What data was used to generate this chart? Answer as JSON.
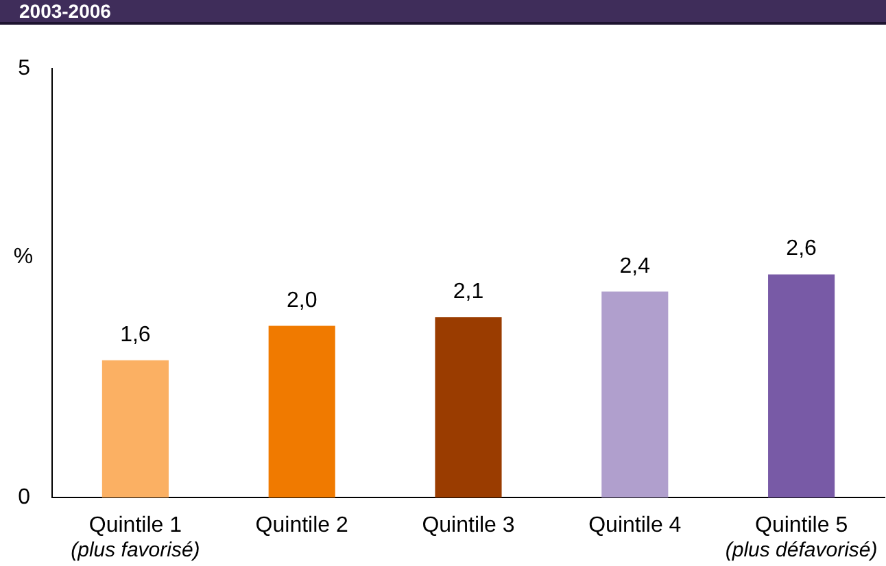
{
  "chart_data": {
    "type": "bar",
    "title": "2003-2006",
    "ylabel": "%",
    "categories": [
      "Quintile 1\n(plus favorisé)",
      "Quintile 2",
      "Quintile 3",
      "Quintile 4",
      "Quintile 5\n(plus défavorisé)"
    ],
    "values": [
      1.6,
      2.0,
      2.1,
      2.4,
      2.6
    ],
    "colors": [
      "#fbb063",
      "#f07a00",
      "#9a3c00",
      "#b09fcd",
      "#785aa6"
    ],
    "value_labels": [
      "1,6",
      "2,0",
      "2,1",
      "2,4",
      "2,6"
    ],
    "ylim": [
      0,
      5
    ],
    "yticks": [
      0,
      5
    ]
  }
}
